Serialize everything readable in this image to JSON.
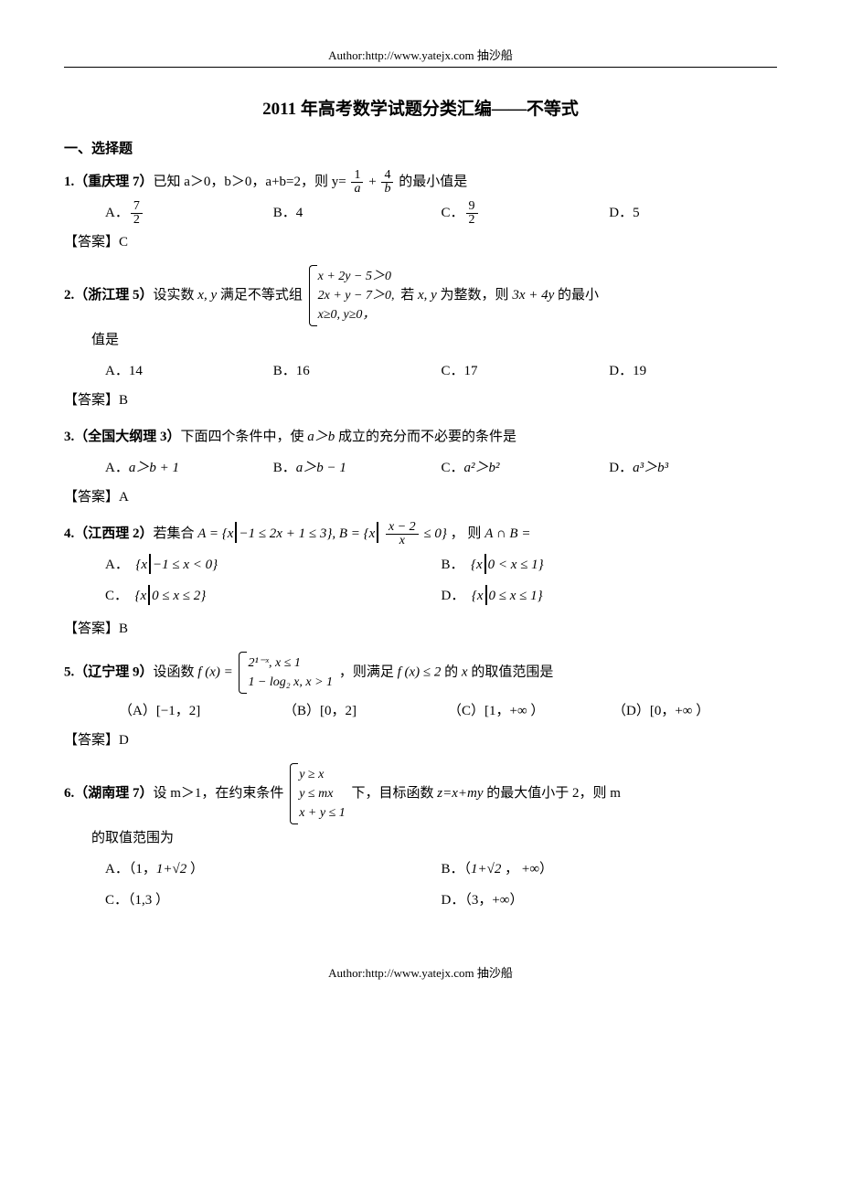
{
  "header": "Author:http://www.yatejx.com  抽沙船",
  "title": "2011 年高考数学试题分类汇编——不等式",
  "section1": "一、选择题",
  "q1": {
    "num": "1.（重庆理 7）",
    "stem_a": "已知 a＞0，b＞0，a+b=2，则 y=",
    "frac1n": "1",
    "frac1d": "a",
    "plus": "+",
    "frac2n": "4",
    "frac2d": "b",
    "stem_b": " 的最小值是",
    "A": "A．",
    "An": "7",
    "Ad": "2",
    "B": "B．4",
    "C": "C．",
    "Cn": "9",
    "Cd": "2",
    "D": "D．5",
    "ans": "【答案】C"
  },
  "q2": {
    "num": "2.（浙江理 5）",
    "stem_a": "设实数 ",
    "xy": "x, y",
    "stem_b": " 满足不等式组",
    "r1": "x + 2y − 5＞0",
    "r2": "2x + y − 7＞0,",
    "r3": "x≥0,  y≥0，",
    "stem_c": "若 ",
    "xy2": "x, y",
    "stem_d": " 为整数，则 ",
    "expr": "3x + 4y",
    "stem_e": " 的最小",
    "cont": "值是",
    "A": "A．14",
    "B": "B．16",
    "C": "C．17",
    "D": "D．19",
    "ans": "【答案】B"
  },
  "q3": {
    "num": "3.（全国大纲理 3）",
    "stem_a": "下面四个条件中，使 ",
    "ab": "a＞b",
    "stem_b": " 成立的充分而不必要的条件是",
    "A": "A．",
    "Ae": "a＞b + 1",
    "B": "B．",
    "Be": "a＞b − 1",
    "C": "C．",
    "Ce": "a²＞b²",
    "D": "D．",
    "De": "a³＞b³",
    "ans": "【答案】A"
  },
  "q4": {
    "num": "4.（江西理 2）",
    "stem_a": "若集合 ",
    "Aset_a": "A = {x",
    "Aset_b": "−1 ≤ 2x + 1 ≤ 3}, B = {x",
    "Bfrac_n": "x − 2",
    "Bfrac_d": "x",
    "Aset_c": " ≤ 0}",
    "stem_b": "，  则 ",
    "inter": "A ∩ B =",
    "A": "A．",
    "Ae_a": "{x",
    "Ae_b": "−1 ≤ x < 0}",
    "B": "B．",
    "Be_a": "{x",
    "Be_b": "0 < x ≤ 1}",
    "C": "C．",
    "Ce_a": "{x",
    "Ce_b": "0 ≤ x ≤ 2}",
    "D": "D．",
    "De_a": "{x",
    "De_b": "0 ≤ x ≤ 1}",
    "ans": "【答案】B"
  },
  "q5": {
    "num": "5.（辽宁理 9）",
    "stem_a": "设函数 ",
    "fx": "f (x) =",
    "r1": "2¹⁻ˣ, x ≤ 1",
    "r2": "1 − log₂ x, x > 1",
    "stem_b": "，则满足 ",
    "cond": "f (x) ≤ 2",
    "stem_c": " 的 ",
    "xv": "x",
    "stem_d": " 的取值范围是",
    "A": "（A）[−1，2]",
    "B": "（B）[0，2]",
    "C": "（C）[1，+∞ ）",
    "D": "（D）[0，+∞ ）",
    "ans": "【答案】D"
  },
  "q6": {
    "num": "6.（湖南理 7）",
    "stem_a": "设 m＞1，在约束条件",
    "r1": "y ≥ x",
    "r2": "y ≤ mx",
    "r3": "x + y ≤ 1",
    "stem_b": "下，目标函数 ",
    "z": "z=x+my",
    "stem_c": " 的最大值小于 2，则 m",
    "cont": "的取值范围为",
    "A": "A．（1，",
    "Asq": "1+√2",
    "Aend": " ）",
    "B": "B．（",
    "Bsq": "1+√2",
    "Bend": " ， +∞）",
    "C": "C．（1,3 ）",
    "D": "D．（3，+∞）"
  },
  "footer": "Author:http://www.yatejx.com 抽沙船"
}
